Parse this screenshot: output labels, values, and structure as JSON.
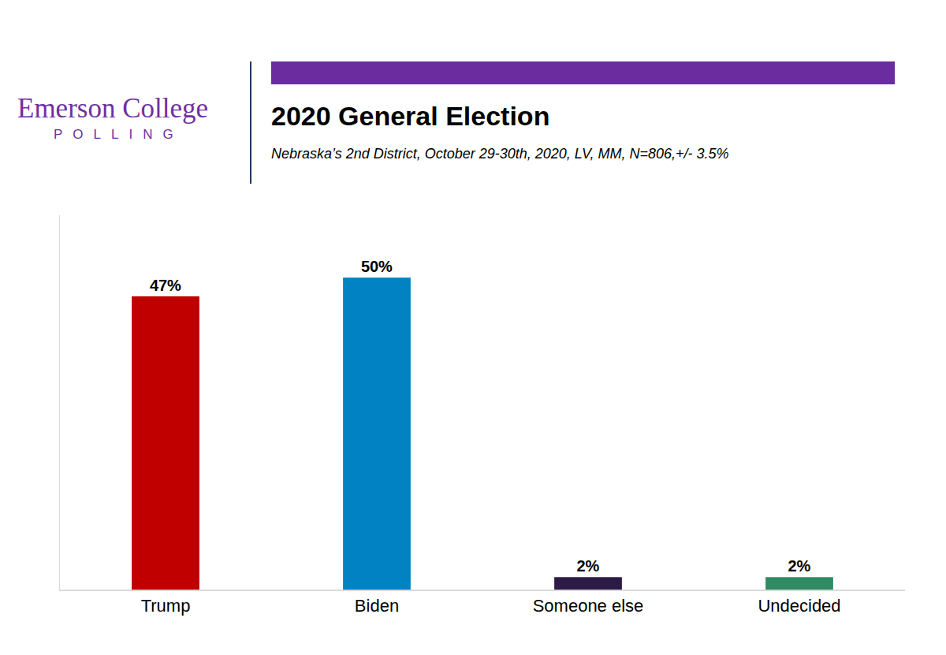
{
  "logo": {
    "name": "Emerson College",
    "tagline": "POLLING"
  },
  "chart_data": {
    "type": "bar",
    "title": "2020 General Election",
    "subtitle": "Nebraska’s 2nd District, October 29-30th, 2020, LV, MM,  N=806,+/- 3.5%",
    "categories": [
      "Trump",
      "Biden",
      "Someone else",
      "Undecided"
    ],
    "values": [
      47,
      50,
      2,
      2
    ],
    "value_labels": [
      "47%",
      "50%",
      "2%",
      "2%"
    ],
    "colors": [
      "#c00000",
      "#0082c3",
      "#2e1a47",
      "#2e8b62"
    ],
    "data_labels": true,
    "tick_labels": "x",
    "grid": false,
    "ylim": [
      0,
      60
    ],
    "yticks": []
  }
}
